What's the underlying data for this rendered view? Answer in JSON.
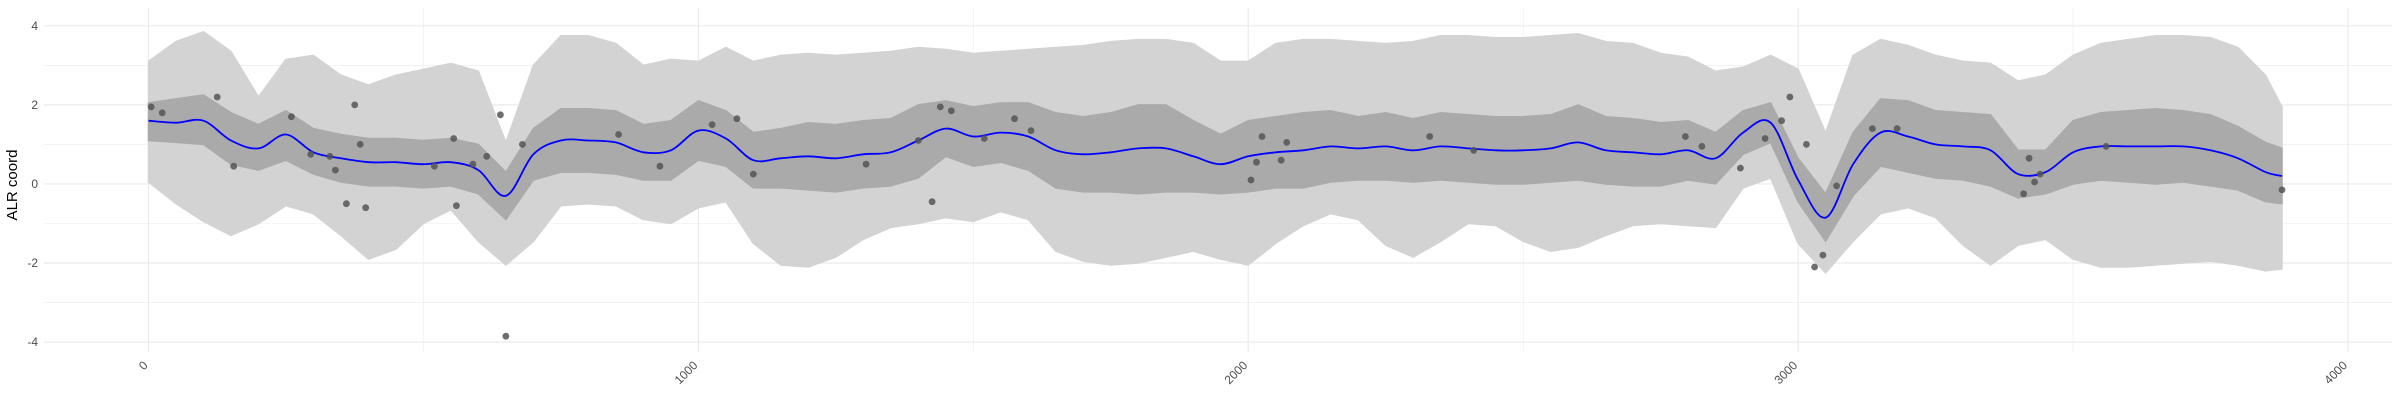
{
  "chart_data": {
    "type": "line",
    "title": "",
    "xlabel": "",
    "ylabel": "ALR coord",
    "xlim": [
      -190,
      4080
    ],
    "ylim": [
      -4.25,
      4.45
    ],
    "x_ticks": [
      0,
      1000,
      2000,
      3000,
      4000
    ],
    "y_ticks": [
      -4,
      -2,
      0,
      2,
      4
    ],
    "grid": true,
    "legend": "none",
    "colors": {
      "line": "#0000ff",
      "inner_band": "#aaaaaa",
      "outer_band": "#d3d3d3",
      "points": "#555555",
      "grid": "#ebebeb"
    },
    "series": [
      {
        "kind": "mean_line",
        "x": [
          0,
          50,
          100,
          150,
          200,
          250,
          300,
          350,
          400,
          450,
          500,
          550,
          600,
          650,
          700,
          750,
          800,
          850,
          900,
          950,
          1000,
          1050,
          1100,
          1150,
          1200,
          1250,
          1300,
          1350,
          1400,
          1450,
          1500,
          1550,
          1600,
          1650,
          1700,
          1750,
          1800,
          1850,
          1900,
          1950,
          2000,
          2050,
          2100,
          2150,
          2200,
          2250,
          2300,
          2350,
          2400,
          2450,
          2500,
          2550,
          2600,
          2650,
          2700,
          2750,
          2800,
          2850,
          2900,
          2950,
          3000,
          3050,
          3100,
          3150,
          3200,
          3250,
          3300,
          3350,
          3400,
          3450,
          3500,
          3550,
          3600,
          3650,
          3700,
          3750,
          3800,
          3850,
          3880
        ],
        "y": [
          1.6,
          1.55,
          1.6,
          1.1,
          0.9,
          1.25,
          0.8,
          0.65,
          0.55,
          0.55,
          0.5,
          0.55,
          0.35,
          -0.3,
          0.75,
          1.1,
          1.1,
          1.05,
          0.8,
          0.85,
          1.35,
          1.15,
          0.6,
          0.65,
          0.7,
          0.65,
          0.75,
          0.8,
          1.1,
          1.4,
          1.2,
          1.3,
          1.2,
          0.85,
          0.75,
          0.8,
          0.9,
          0.9,
          0.7,
          0.5,
          0.7,
          0.8,
          0.85,
          0.95,
          0.9,
          0.95,
          0.85,
          0.95,
          0.9,
          0.85,
          0.85,
          0.9,
          1.05,
          0.85,
          0.8,
          0.75,
          0.85,
          0.65,
          1.3,
          1.55,
          0.1,
          -0.85,
          0.5,
          1.3,
          1.2,
          1.0,
          0.95,
          0.85,
          0.25,
          0.3,
          0.8,
          0.95,
          0.95,
          0.95,
          0.95,
          0.85,
          0.65,
          0.3,
          0.2
        ]
      },
      {
        "kind": "inner_band",
        "x": [
          0,
          50,
          100,
          150,
          200,
          250,
          300,
          350,
          400,
          450,
          500,
          550,
          600,
          650,
          700,
          750,
          800,
          850,
          900,
          950,
          1000,
          1050,
          1100,
          1150,
          1200,
          1250,
          1300,
          1350,
          1400,
          1450,
          1500,
          1550,
          1600,
          1650,
          1700,
          1750,
          1800,
          1850,
          1900,
          1950,
          2000,
          2050,
          2100,
          2150,
          2200,
          2250,
          2300,
          2350,
          2400,
          2450,
          2500,
          2550,
          2600,
          2650,
          2700,
          2750,
          2800,
          2850,
          2900,
          2950,
          3000,
          3050,
          3100,
          3150,
          3200,
          3250,
          3300,
          3350,
          3400,
          3450,
          3500,
          3550,
          3600,
          3650,
          3700,
          3750,
          3800,
          3850,
          3880
        ],
        "lower": [
          1.1,
          1.05,
          1.0,
          0.5,
          0.35,
          0.6,
          0.25,
          0.05,
          -0.05,
          -0.05,
          -0.1,
          -0.05,
          -0.25,
          -0.9,
          0.1,
          0.3,
          0.3,
          0.25,
          0.1,
          0.1,
          0.6,
          0.45,
          -0.1,
          -0.1,
          -0.15,
          -0.2,
          -0.1,
          -0.05,
          0.15,
          0.7,
          0.45,
          0.55,
          0.35,
          -0.1,
          -0.2,
          -0.2,
          -0.25,
          -0.2,
          -0.2,
          -0.25,
          -0.2,
          -0.1,
          -0.1,
          0.05,
          0.1,
          0.1,
          0.05,
          0.1,
          0.05,
          0.0,
          0.0,
          0.05,
          0.1,
          0.0,
          -0.05,
          -0.05,
          0.1,
          0.0,
          0.75,
          1.05,
          -0.45,
          -1.45,
          -0.3,
          0.45,
          0.3,
          0.15,
          0.1,
          -0.05,
          -0.35,
          -0.25,
          0.0,
          0.1,
          0.05,
          0.0,
          0.05,
          -0.05,
          -0.15,
          -0.45,
          -0.5
        ],
        "upper": [
          2.05,
          2.15,
          2.25,
          1.8,
          1.5,
          1.85,
          1.4,
          1.25,
          1.15,
          1.15,
          1.1,
          1.15,
          1.0,
          0.3,
          1.4,
          1.9,
          1.9,
          1.85,
          1.5,
          1.6,
          2.1,
          1.85,
          1.3,
          1.4,
          1.55,
          1.5,
          1.6,
          1.65,
          2.0,
          2.1,
          1.95,
          2.05,
          2.05,
          1.8,
          1.7,
          1.8,
          2.0,
          2.0,
          1.6,
          1.25,
          1.6,
          1.7,
          1.8,
          1.85,
          1.7,
          1.8,
          1.65,
          1.8,
          1.75,
          1.7,
          1.7,
          1.75,
          2.0,
          1.7,
          1.65,
          1.55,
          1.6,
          1.3,
          1.85,
          2.05,
          0.65,
          -0.25,
          1.3,
          2.15,
          2.1,
          1.85,
          1.8,
          1.75,
          0.85,
          0.85,
          1.6,
          1.8,
          1.85,
          1.9,
          1.85,
          1.75,
          1.45,
          1.05,
          0.9
        ]
      },
      {
        "kind": "outer_band",
        "x": [
          0,
          50,
          100,
          150,
          200,
          250,
          300,
          350,
          400,
          450,
          500,
          550,
          600,
          650,
          700,
          750,
          800,
          850,
          900,
          950,
          1000,
          1050,
          1100,
          1150,
          1200,
          1250,
          1300,
          1350,
          1400,
          1450,
          1500,
          1550,
          1600,
          1650,
          1700,
          1750,
          1800,
          1850,
          1900,
          1950,
          2000,
          2050,
          2100,
          2150,
          2200,
          2250,
          2300,
          2350,
          2400,
          2450,
          2500,
          2550,
          2600,
          2650,
          2700,
          2750,
          2800,
          2850,
          2900,
          2950,
          3000,
          3050,
          3100,
          3150,
          3200,
          3250,
          3300,
          3350,
          3400,
          3450,
          3500,
          3550,
          3600,
          3650,
          3700,
          3750,
          3800,
          3850,
          3880
        ],
        "lower": [
          0.05,
          -0.5,
          -0.95,
          -1.3,
          -1.0,
          -0.55,
          -0.75,
          -1.3,
          -1.9,
          -1.65,
          -1.0,
          -0.65,
          -1.45,
          -2.05,
          -1.45,
          -0.55,
          -0.5,
          -0.55,
          -0.9,
          -1.0,
          -0.6,
          -0.45,
          -1.5,
          -2.05,
          -2.1,
          -1.85,
          -1.4,
          -1.1,
          -1.0,
          -0.85,
          -0.95,
          -0.7,
          -0.9,
          -1.7,
          -1.95,
          -2.05,
          -2.0,
          -1.85,
          -1.7,
          -1.9,
          -2.05,
          -1.5,
          -1.05,
          -0.75,
          -0.9,
          -1.55,
          -1.85,
          -1.45,
          -1.0,
          -1.05,
          -1.45,
          -1.7,
          -1.6,
          -1.3,
          -1.05,
          -1.0,
          -1.05,
          -1.1,
          -0.1,
          0.15,
          -1.5,
          -2.25,
          -1.45,
          -0.75,
          -0.6,
          -0.85,
          -1.55,
          -2.05,
          -1.55,
          -1.4,
          -1.9,
          -2.1,
          -2.1,
          -2.05,
          -2.0,
          -1.95,
          -2.05,
          -2.2,
          -2.15
        ],
        "upper": [
          3.1,
          3.6,
          3.85,
          3.35,
          2.2,
          3.15,
          3.25,
          2.75,
          2.5,
          2.75,
          2.9,
          3.05,
          2.85,
          1.05,
          3.0,
          3.75,
          3.75,
          3.55,
          3.0,
          3.15,
          3.1,
          3.45,
          3.1,
          3.25,
          3.3,
          3.25,
          3.3,
          3.35,
          3.45,
          3.4,
          3.3,
          3.35,
          3.4,
          3.45,
          3.5,
          3.6,
          3.65,
          3.65,
          3.55,
          3.1,
          3.1,
          3.55,
          3.65,
          3.65,
          3.6,
          3.55,
          3.6,
          3.75,
          3.75,
          3.7,
          3.7,
          3.75,
          3.8,
          3.6,
          3.55,
          3.3,
          3.2,
          2.85,
          2.95,
          3.25,
          2.9,
          1.3,
          3.25,
          3.65,
          3.5,
          3.25,
          3.1,
          3.05,
          2.6,
          2.75,
          3.25,
          3.55,
          3.65,
          3.75,
          3.75,
          3.7,
          3.45,
          2.75,
          1.95
        ]
      },
      {
        "kind": "observations",
        "x": [
          5,
          25,
          125,
          155,
          260,
          295,
          330,
          340,
          360,
          375,
          385,
          395,
          520,
          555,
          560,
          590,
          615,
          640,
          650,
          680,
          855,
          930,
          1025,
          1070,
          1100,
          1305,
          1400,
          1425,
          1440,
          1460,
          1520,
          1575,
          1605,
          2005,
          2015,
          2025,
          2060,
          2070,
          2330,
          2410,
          2795,
          2825,
          2895,
          2940,
          2970,
          2985,
          3015,
          3030,
          3045,
          3070,
          3135,
          3180,
          3410,
          3420,
          3430,
          3440,
          3560,
          3880
        ],
        "y": [
          1.95,
          1.8,
          2.2,
          0.45,
          1.7,
          0.75,
          0.7,
          0.35,
          -0.5,
          2.0,
          1.0,
          -0.6,
          0.45,
          1.15,
          -0.55,
          0.5,
          0.7,
          1.75,
          -3.85,
          1.0,
          1.25,
          0.45,
          1.5,
          1.65,
          0.25,
          0.5,
          1.1,
          -0.45,
          1.95,
          1.85,
          1.15,
          1.65,
          1.35,
          0.1,
          0.55,
          1.2,
          0.6,
          1.05,
          1.2,
          0.85,
          1.2,
          0.95,
          0.4,
          1.15,
          1.6,
          2.2,
          1.0,
          -2.1,
          -1.8,
          -0.05,
          1.4,
          1.4,
          -0.25,
          0.65,
          0.05,
          0.25,
          0.95,
          -0.15
        ]
      }
    ]
  }
}
